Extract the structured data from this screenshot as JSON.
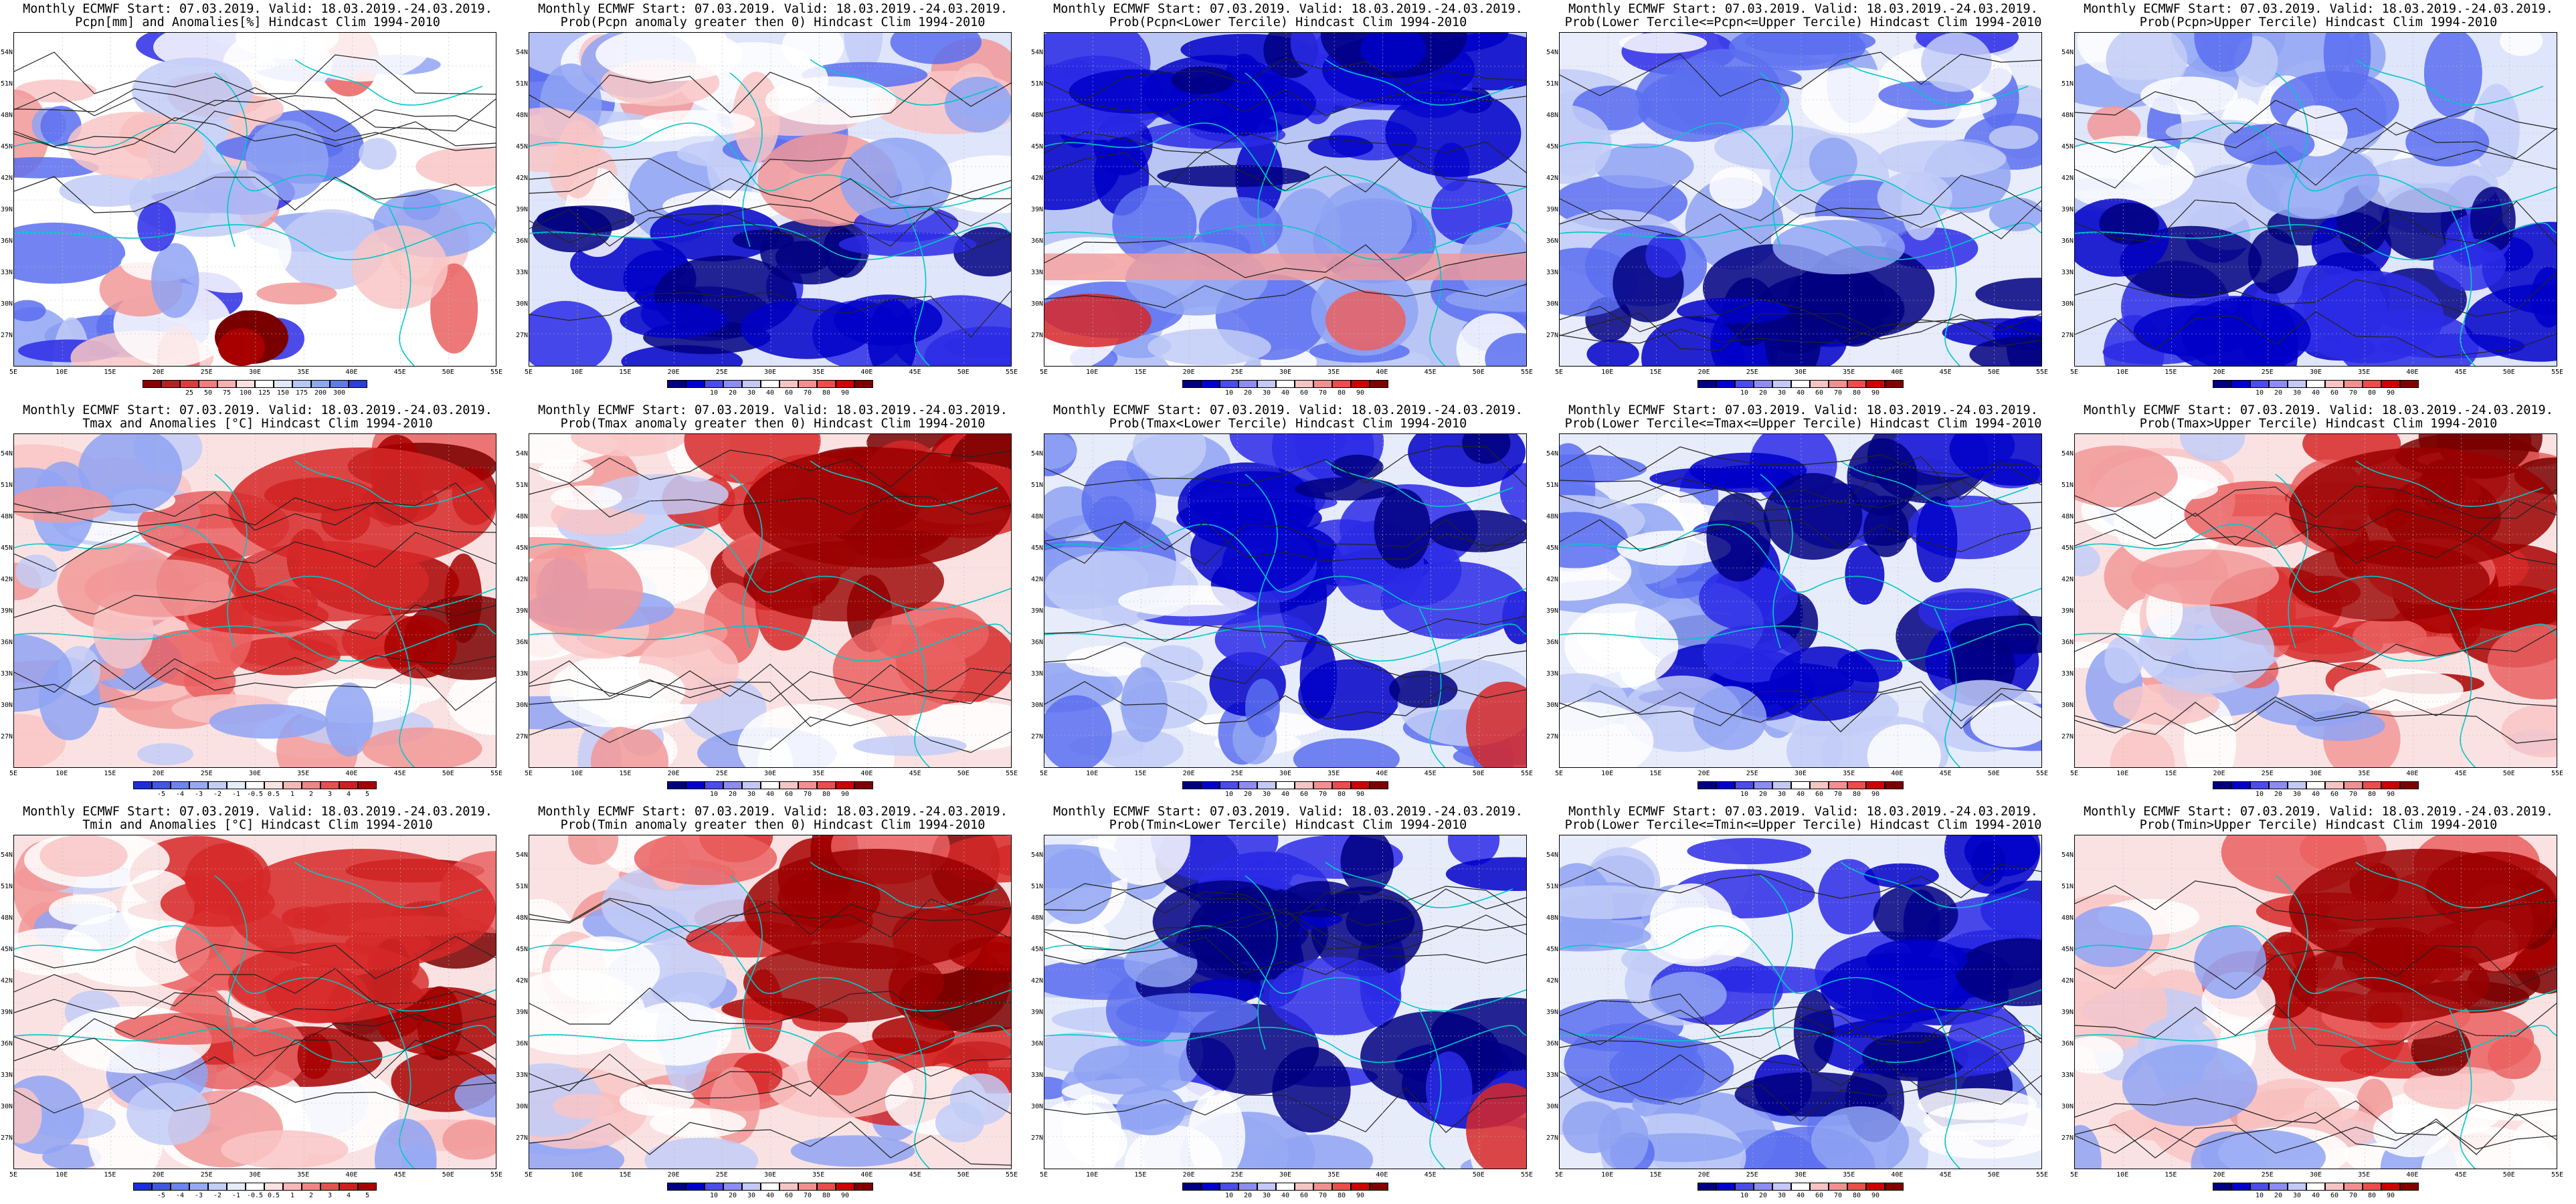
{
  "header_line": "Monthly ECMWF Start: 07.03.2019. Valid: 18.03.2019.-24.03.2019.",
  "lat_labels": [
    "54N",
    "51N",
    "48N",
    "45N",
    "42N",
    "39N",
    "36N",
    "33N",
    "30N",
    "27N"
  ],
  "lon_labels": [
    "5E",
    "10E",
    "15E",
    "20E",
    "25E",
    "30E",
    "35E",
    "40E",
    "45E",
    "50E",
    "55E"
  ],
  "colorbars": {
    "precip_anom": {
      "colors": [
        "#8b0000",
        "#b22222",
        "#dc3c3c",
        "#f07d7d",
        "#f7b0b0",
        "#fde0e0",
        "#ffffff",
        "#e0e8fb",
        "#b5c8f5",
        "#8ea7ef",
        "#5f7be6",
        "#2a3fd8"
      ],
      "ticks": [
        "25",
        "50",
        "75",
        "100",
        "125",
        "150",
        "175",
        "200",
        "300"
      ]
    },
    "prob": {
      "colors": [
        "#000080",
        "#0000d0",
        "#4b4bee",
        "#8c8cf2",
        "#c4c8f7",
        "#ffffff",
        "#f7c4c4",
        "#f29090",
        "#ee4b4b",
        "#d00000",
        "#800000"
      ],
      "ticks": [
        "10",
        "20",
        "30",
        "40",
        "60",
        "70",
        "80",
        "90"
      ]
    },
    "temp_anom": {
      "colors": [
        "#1a2fd8",
        "#3f57e2",
        "#6c85eb",
        "#96aaf1",
        "#c1cff7",
        "#e6ecfc",
        "#ffffff",
        "#fde2e2",
        "#f9b8b8",
        "#f08585",
        "#e85050",
        "#d21e1e",
        "#a80000"
      ],
      "ticks": [
        "-5",
        "-4",
        "-3",
        "-2",
        "-1",
        "-0.5",
        "0.5",
        "1",
        "2",
        "3",
        "4",
        "5"
      ]
    }
  },
  "panels": [
    {
      "row": 0,
      "col": 0,
      "line2": "Pcpn[mm] and Anomalies[%] Hindcast Clim 1994-2010",
      "colorbar": "precip_anom",
      "map_base": "mixed_light",
      "warm_zone": "south_blob"
    },
    {
      "row": 0,
      "col": 1,
      "line2": "Prob(Pcpn anomaly greater then 0) Hindcast Clim 1994-2010",
      "colorbar": "prob",
      "map_base": "blue_south",
      "warm_zone": "none"
    },
    {
      "row": 0,
      "col": 2,
      "line2": "Prob(Pcpn<Lower Tercile) Hindcast Clim 1994-2010",
      "colorbar": "prob",
      "map_base": "blue_north",
      "warm_zone": "south_band"
    },
    {
      "row": 0,
      "col": 3,
      "line2": "Prob(Lower Tercile<=Pcpn<=Upper Tercile) Hindcast Clim 1994-2010",
      "colorbar": "prob",
      "map_base": "blue_mixed",
      "warm_zone": "none"
    },
    {
      "row": 0,
      "col": 4,
      "line2": "Prob(Pcpn>Upper Tercile) Hindcast Clim 1994-2010",
      "colorbar": "prob",
      "map_base": "blue_south",
      "warm_zone": "none"
    },
    {
      "row": 1,
      "col": 0,
      "line2": "Tmax and Anomalies [°C] Hindcast Clim 1994-2010",
      "colorbar": "temp_anom",
      "map_base": "warm_east",
      "warm_zone": "east"
    },
    {
      "row": 1,
      "col": 1,
      "line2": "Prob(Tmax anomaly greater then 0) Hindcast Clim 1994-2010",
      "colorbar": "prob",
      "map_base": "warm_east",
      "warm_zone": "east_strong"
    },
    {
      "row": 1,
      "col": 2,
      "line2": "Prob(Tmax<Lower Tercile) Hindcast Clim 1994-2010",
      "colorbar": "prob",
      "map_base": "blue_east",
      "warm_zone": "se_corner"
    },
    {
      "row": 1,
      "col": 3,
      "line2": "Prob(Lower Tercile<=Tmax<=Upper Tercile) Hindcast Clim 1994-2010",
      "colorbar": "prob",
      "map_base": "blue_east",
      "warm_zone": "none"
    },
    {
      "row": 1,
      "col": 4,
      "line2": "Prob(Tmax>Upper Tercile) Hindcast Clim 1994-2010",
      "colorbar": "prob",
      "map_base": "warm_east",
      "warm_zone": "east_strong"
    },
    {
      "row": 2,
      "col": 0,
      "line2": "Tmin and Anomalies [°C] Hindcast Clim 1994-2010",
      "colorbar": "temp_anom",
      "map_base": "warm_east",
      "warm_zone": "east"
    },
    {
      "row": 2,
      "col": 1,
      "line2": "Prob(Tmin anomaly greater then 0) Hindcast Clim 1994-2010",
      "colorbar": "prob",
      "map_base": "warm_east",
      "warm_zone": "east_strong"
    },
    {
      "row": 2,
      "col": 2,
      "line2": "Prob(Tmin<Lower Tercile) Hindcast Clim 1994-2010",
      "colorbar": "prob",
      "map_base": "blue_east",
      "warm_zone": "se_corner"
    },
    {
      "row": 2,
      "col": 3,
      "line2": "Prob(Lower Tercile<=Tmin<=Upper Tercile) Hindcast Clim 1994-2010",
      "colorbar": "prob",
      "map_base": "blue_east",
      "warm_zone": "none"
    },
    {
      "row": 2,
      "col": 4,
      "line2": "Prob(Tmin>Upper Tercile) Hindcast Clim 1994-2010",
      "colorbar": "prob",
      "map_base": "warm_east",
      "warm_zone": "east_strong"
    }
  ]
}
